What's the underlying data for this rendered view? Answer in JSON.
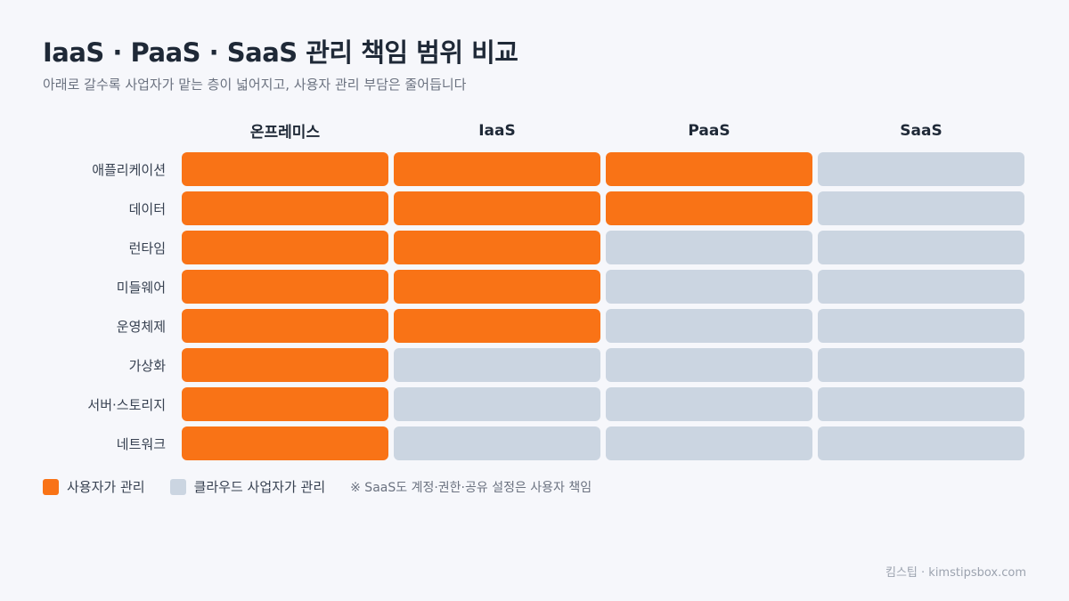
{
  "title": "IaaS · PaaS · SaaS 관리 책임 범위 비교",
  "subtitle": "아래로 갈수록 사업자가 맡는 층이 넓어지고, 사용자 관리 부담은 줄어듭니다",
  "columns": [
    "온프레미스",
    "IaaS",
    "PaaS",
    "SaaS"
  ],
  "rows": [
    {
      "label": "애플리케이션",
      "cells": [
        "user",
        "user",
        "user",
        "cloud"
      ]
    },
    {
      "label": "데이터",
      "cells": [
        "user",
        "user",
        "user",
        "cloud"
      ]
    },
    {
      "label": "런타임",
      "cells": [
        "user",
        "user",
        "cloud",
        "cloud"
      ]
    },
    {
      "label": "미들웨어",
      "cells": [
        "user",
        "user",
        "cloud",
        "cloud"
      ]
    },
    {
      "label": "운영체제",
      "cells": [
        "user",
        "user",
        "cloud",
        "cloud"
      ]
    },
    {
      "label": "가상화",
      "cells": [
        "user",
        "cloud",
        "cloud",
        "cloud"
      ]
    },
    {
      "label": "서버·스토리지",
      "cells": [
        "user",
        "cloud",
        "cloud",
        "cloud"
      ]
    },
    {
      "label": "네트워크",
      "cells": [
        "user",
        "cloud",
        "cloud",
        "cloud"
      ]
    }
  ],
  "colors": {
    "user": "#f97316",
    "cloud": "#cbd5e1"
  },
  "legend": {
    "user_label": "사용자가 관리",
    "cloud_label": "클라우드 사업자가 관리",
    "note": "※ SaaS도 계정·권한·공유 설정은 사용자 책임"
  },
  "footer": "킴스팁 · kimstipsbox.com"
}
